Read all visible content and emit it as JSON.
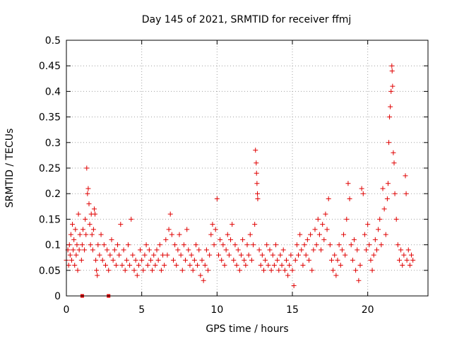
{
  "chart_data": {
    "type": "scatter",
    "title": "Day 145 of 2021, SRMTID for receiver ffmj",
    "xlabel": "GPS time / hours",
    "ylabel": "SRMTID / TECUs",
    "xlim": [
      0,
      24
    ],
    "ylim": [
      0,
      0.5
    ],
    "x_ticks": [
      0,
      5,
      10,
      15,
      20
    ],
    "x_tick_labels": [
      "0",
      "5",
      "10",
      "15",
      "20"
    ],
    "y_ticks": [
      0,
      0.05,
      0.1,
      0.15,
      0.2,
      0.25,
      0.3,
      0.35,
      0.4,
      0.45,
      0.5
    ],
    "y_tick_labels": [
      "0",
      "0.05",
      "0.1",
      "0.15",
      "0.2",
      "0.25",
      "0.3",
      "0.35",
      "0.4",
      "0.45",
      "0.5"
    ],
    "grid": true,
    "legend": "none",
    "marker": "plus",
    "marker_color": "#e00000",
    "square_markers": [
      {
        "x": 1.05,
        "y": 0.0
      },
      {
        "x": 2.8,
        "y": 0.0
      }
    ],
    "points": [
      [
        0.0,
        0.07
      ],
      [
        0.1,
        0.09
      ],
      [
        0.15,
        0.06
      ],
      [
        0.2,
        0.1
      ],
      [
        0.25,
        0.08
      ],
      [
        0.3,
        0.12
      ],
      [
        0.35,
        0.07
      ],
      [
        0.4,
        0.14
      ],
      [
        0.45,
        0.09
      ],
      [
        0.5,
        0.11
      ],
      [
        0.55,
        0.06
      ],
      [
        0.6,
        0.13
      ],
      [
        0.65,
        0.08
      ],
      [
        0.7,
        0.1
      ],
      [
        0.75,
        0.05
      ],
      [
        0.8,
        0.16
      ],
      [
        0.85,
        0.09
      ],
      [
        0.9,
        0.12
      ],
      [
        1.0,
        0.07
      ],
      [
        1.05,
        0.1
      ],
      [
        1.1,
        0.13
      ],
      [
        1.2,
        0.09
      ],
      [
        1.25,
        0.15
      ],
      [
        1.3,
        0.12
      ],
      [
        1.35,
        0.25
      ],
      [
        1.4,
        0.2
      ],
      [
        1.45,
        0.21
      ],
      [
        1.5,
        0.18
      ],
      [
        1.55,
        0.14
      ],
      [
        1.6,
        0.1
      ],
      [
        1.65,
        0.16
      ],
      [
        1.7,
        0.12
      ],
      [
        1.75,
        0.09
      ],
      [
        1.8,
        0.13
      ],
      [
        1.85,
        0.17
      ],
      [
        1.9,
        0.16
      ],
      [
        1.95,
        0.07
      ],
      [
        2.0,
        0.05
      ],
      [
        2.05,
        0.04
      ],
      [
        2.1,
        0.1
      ],
      [
        2.2,
        0.08
      ],
      [
        2.3,
        0.12
      ],
      [
        2.4,
        0.07
      ],
      [
        2.5,
        0.1
      ],
      [
        2.6,
        0.06
      ],
      [
        2.7,
        0.09
      ],
      [
        2.8,
        0.05
      ],
      [
        2.9,
        0.08
      ],
      [
        3.0,
        0.11
      ],
      [
        3.1,
        0.07
      ],
      [
        3.2,
        0.09
      ],
      [
        3.3,
        0.06
      ],
      [
        3.4,
        0.1
      ],
      [
        3.5,
        0.08
      ],
      [
        3.6,
        0.14
      ],
      [
        3.7,
        0.06
      ],
      [
        3.8,
        0.09
      ],
      [
        3.9,
        0.05
      ],
      [
        4.0,
        0.07
      ],
      [
        4.1,
        0.1
      ],
      [
        4.2,
        0.06
      ],
      [
        4.3,
        0.15
      ],
      [
        4.4,
        0.08
      ],
      [
        4.5,
        0.05
      ],
      [
        4.6,
        0.07
      ],
      [
        4.7,
        0.04
      ],
      [
        4.8,
        0.06
      ],
      [
        4.9,
        0.09
      ],
      [
        5.0,
        0.07
      ],
      [
        5.1,
        0.05
      ],
      [
        5.2,
        0.08
      ],
      [
        5.3,
        0.1
      ],
      [
        5.4,
        0.06
      ],
      [
        5.5,
        0.09
      ],
      [
        5.6,
        0.07
      ],
      [
        5.7,
        0.05
      ],
      [
        5.8,
        0.08
      ],
      [
        5.9,
        0.06
      ],
      [
        6.0,
        0.09
      ],
      [
        6.1,
        0.07
      ],
      [
        6.2,
        0.1
      ],
      [
        6.3,
        0.05
      ],
      [
        6.4,
        0.08
      ],
      [
        6.5,
        0.06
      ],
      [
        6.6,
        0.11
      ],
      [
        6.7,
        0.08
      ],
      [
        6.8,
        0.13
      ],
      [
        6.9,
        0.16
      ],
      [
        7.0,
        0.12
      ],
      [
        7.1,
        0.07
      ],
      [
        7.2,
        0.1
      ],
      [
        7.3,
        0.06
      ],
      [
        7.4,
        0.09
      ],
      [
        7.5,
        0.12
      ],
      [
        7.6,
        0.08
      ],
      [
        7.7,
        0.05
      ],
      [
        7.8,
        0.1
      ],
      [
        7.9,
        0.07
      ],
      [
        8.0,
        0.13
      ],
      [
        8.1,
        0.09
      ],
      [
        8.2,
        0.06
      ],
      [
        8.3,
        0.08
      ],
      [
        8.4,
        0.05
      ],
      [
        8.5,
        0.07
      ],
      [
        8.6,
        0.1
      ],
      [
        8.7,
        0.06
      ],
      [
        8.8,
        0.09
      ],
      [
        8.9,
        0.04
      ],
      [
        9.0,
        0.07
      ],
      [
        9.1,
        0.03
      ],
      [
        9.2,
        0.06
      ],
      [
        9.3,
        0.09
      ],
      [
        9.4,
        0.05
      ],
      [
        9.5,
        0.08
      ],
      [
        9.6,
        0.12
      ],
      [
        9.7,
        0.14
      ],
      [
        9.8,
        0.1
      ],
      [
        9.9,
        0.13
      ],
      [
        10.0,
        0.19
      ],
      [
        10.1,
        0.08
      ],
      [
        10.2,
        0.11
      ],
      [
        10.3,
        0.07
      ],
      [
        10.4,
        0.1
      ],
      [
        10.5,
        0.06
      ],
      [
        10.6,
        0.09
      ],
      [
        10.7,
        0.12
      ],
      [
        10.8,
        0.08
      ],
      [
        10.9,
        0.11
      ],
      [
        11.0,
        0.14
      ],
      [
        11.1,
        0.07
      ],
      [
        11.2,
        0.1
      ],
      [
        11.3,
        0.06
      ],
      [
        11.4,
        0.09
      ],
      [
        11.5,
        0.05
      ],
      [
        11.6,
        0.08
      ],
      [
        11.7,
        0.11
      ],
      [
        11.8,
        0.07
      ],
      [
        11.9,
        0.06
      ],
      [
        12.0,
        0.1
      ],
      [
        12.1,
        0.08
      ],
      [
        12.2,
        0.12
      ],
      [
        12.3,
        0.07
      ],
      [
        12.4,
        0.1
      ],
      [
        12.5,
        0.14
      ],
      [
        12.55,
        0.285
      ],
      [
        12.6,
        0.26
      ],
      [
        12.62,
        0.24
      ],
      [
        12.65,
        0.22
      ],
      [
        12.68,
        0.2
      ],
      [
        12.7,
        0.19
      ],
      [
        12.8,
        0.09
      ],
      [
        12.9,
        0.06
      ],
      [
        13.0,
        0.08
      ],
      [
        13.1,
        0.05
      ],
      [
        13.2,
        0.07
      ],
      [
        13.3,
        0.1
      ],
      [
        13.4,
        0.06
      ],
      [
        13.5,
        0.09
      ],
      [
        13.6,
        0.05
      ],
      [
        13.7,
        0.08
      ],
      [
        13.8,
        0.06
      ],
      [
        13.9,
        0.1
      ],
      [
        14.0,
        0.07
      ],
      [
        14.1,
        0.05
      ],
      [
        14.2,
        0.08
      ],
      [
        14.3,
        0.06
      ],
      [
        14.4,
        0.09
      ],
      [
        14.5,
        0.05
      ],
      [
        14.6,
        0.07
      ],
      [
        14.7,
        0.04
      ],
      [
        14.8,
        0.06
      ],
      [
        14.9,
        0.08
      ],
      [
        15.0,
        0.05
      ],
      [
        15.1,
        0.02
      ],
      [
        15.2,
        0.07
      ],
      [
        15.3,
        0.1
      ],
      [
        15.4,
        0.08
      ],
      [
        15.5,
        0.12
      ],
      [
        15.6,
        0.09
      ],
      [
        15.7,
        0.06
      ],
      [
        15.8,
        0.1
      ],
      [
        15.9,
        0.08
      ],
      [
        16.0,
        0.11
      ],
      [
        16.1,
        0.07
      ],
      [
        16.2,
        0.12
      ],
      [
        16.3,
        0.05
      ],
      [
        16.4,
        0.09
      ],
      [
        16.5,
        0.13
      ],
      [
        16.6,
        0.1
      ],
      [
        16.7,
        0.15
      ],
      [
        16.8,
        0.12
      ],
      [
        16.9,
        0.09
      ],
      [
        17.0,
        0.14
      ],
      [
        17.1,
        0.11
      ],
      [
        17.2,
        0.16
      ],
      [
        17.3,
        0.13
      ],
      [
        17.4,
        0.19
      ],
      [
        17.5,
        0.1
      ],
      [
        17.6,
        0.07
      ],
      [
        17.7,
        0.05
      ],
      [
        17.8,
        0.08
      ],
      [
        17.9,
        0.04
      ],
      [
        18.0,
        0.07
      ],
      [
        18.1,
        0.1
      ],
      [
        18.2,
        0.06
      ],
      [
        18.3,
        0.09
      ],
      [
        18.4,
        0.12
      ],
      [
        18.5,
        0.08
      ],
      [
        18.6,
        0.15
      ],
      [
        18.7,
        0.22
      ],
      [
        18.8,
        0.19
      ],
      [
        18.9,
        0.1
      ],
      [
        19.0,
        0.07
      ],
      [
        19.1,
        0.11
      ],
      [
        19.2,
        0.05
      ],
      [
        19.3,
        0.09
      ],
      [
        19.4,
        0.03
      ],
      [
        19.5,
        0.06
      ],
      [
        19.6,
        0.21
      ],
      [
        19.7,
        0.2
      ],
      [
        19.8,
        0.12
      ],
      [
        19.9,
        0.09
      ],
      [
        20.0,
        0.14
      ],
      [
        20.1,
        0.1
      ],
      [
        20.2,
        0.07
      ],
      [
        20.3,
        0.05
      ],
      [
        20.4,
        0.08
      ],
      [
        20.5,
        0.11
      ],
      [
        20.6,
        0.09
      ],
      [
        20.7,
        0.13
      ],
      [
        20.8,
        0.15
      ],
      [
        20.9,
        0.1
      ],
      [
        21.0,
        0.21
      ],
      [
        21.1,
        0.17
      ],
      [
        21.2,
        0.12
      ],
      [
        21.3,
        0.19
      ],
      [
        21.35,
        0.22
      ],
      [
        21.4,
        0.3
      ],
      [
        21.45,
        0.35
      ],
      [
        21.5,
        0.37
      ],
      [
        21.55,
        0.4
      ],
      [
        21.6,
        0.45
      ],
      [
        21.62,
        0.44
      ],
      [
        21.65,
        0.41
      ],
      [
        21.7,
        0.28
      ],
      [
        21.75,
        0.26
      ],
      [
        21.8,
        0.2
      ],
      [
        21.9,
        0.15
      ],
      [
        22.0,
        0.1
      ],
      [
        22.1,
        0.07
      ],
      [
        22.2,
        0.09
      ],
      [
        22.3,
        0.06
      ],
      [
        22.4,
        0.08
      ],
      [
        22.5,
        0.235
      ],
      [
        22.55,
        0.2
      ],
      [
        22.6,
        0.07
      ],
      [
        22.7,
        0.09
      ],
      [
        22.8,
        0.06
      ],
      [
        22.9,
        0.08
      ],
      [
        23.0,
        0.07
      ]
    ]
  }
}
